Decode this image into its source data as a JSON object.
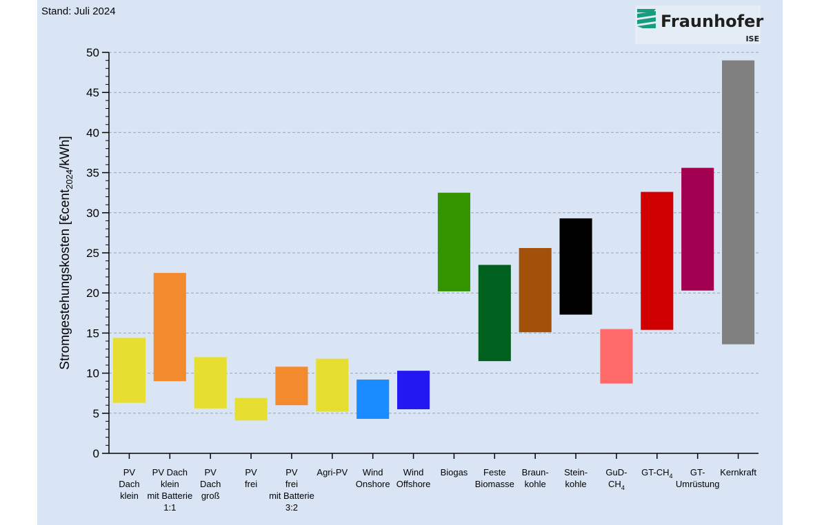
{
  "header": {
    "stand": "Stand: Juli 2024"
  },
  "logo": {
    "name": "Fraunhofer",
    "sub": "ISE",
    "color": "#179c7d"
  },
  "chart_data": {
    "type": "bar",
    "subtype": "floating-range",
    "title": "",
    "xlabel": "",
    "ylabel": "Stromgestehungskosten [€cent2024/kWh]",
    "ylabel_parts": {
      "main": "Stromgestehungskosten [€cent",
      "sub": "2024",
      "tail": "/kWh]"
    },
    "ylim": [
      0,
      50
    ],
    "yticks": [
      0,
      5,
      10,
      15,
      20,
      25,
      30,
      35,
      40,
      45,
      50
    ],
    "grid": true,
    "categories": [
      {
        "label": "PV Dach klein",
        "lines": [
          "PV",
          "Dach",
          "klein"
        ],
        "low": 6.3,
        "high": 14.4,
        "color": "#e6de30"
      },
      {
        "label": "PV Dach klein mit Batterie 1:1",
        "lines": [
          "PV Dach",
          "klein",
          "mit Batterie",
          "1:1"
        ],
        "low": 9.0,
        "high": 22.5,
        "color": "#f48a2e"
      },
      {
        "label": "PV Dach groß",
        "lines": [
          "PV",
          "Dach",
          "groß"
        ],
        "low": 5.6,
        "high": 12.0,
        "color": "#e6de30"
      },
      {
        "label": "PV frei",
        "lines": [
          "PV",
          "frei"
        ],
        "low": 4.1,
        "high": 6.9,
        "color": "#e6de30"
      },
      {
        "label": "PV frei mit Batterie 3:2",
        "lines": [
          "PV",
          "frei",
          "mit Batterie",
          "3:2"
        ],
        "low": 6.0,
        "high": 10.8,
        "color": "#f48a2e"
      },
      {
        "label": "Agri-PV",
        "lines": [
          "Agri-PV"
        ],
        "low": 5.2,
        "high": 11.8,
        "color": "#e6de30"
      },
      {
        "label": "Wind Onshore",
        "lines": [
          "Wind",
          "Onshore"
        ],
        "low": 4.3,
        "high": 9.2,
        "color": "#1a8cff"
      },
      {
        "label": "Wind Offshore",
        "lines": [
          "Wind",
          "Offshore"
        ],
        "low": 5.5,
        "high": 10.3,
        "color": "#2319f0"
      },
      {
        "label": "Biogas",
        "lines": [
          "Biogas"
        ],
        "low": 20.2,
        "high": 32.5,
        "color": "#339400"
      },
      {
        "label": "Feste Biomasse",
        "lines": [
          "Feste",
          "Biomasse"
        ],
        "low": 11.5,
        "high": 23.5,
        "color": "#00611f"
      },
      {
        "label": "Braunkohle",
        "lines": [
          "Braun-",
          "kohle"
        ],
        "low": 15.1,
        "high": 25.6,
        "color": "#a3500a"
      },
      {
        "label": "Steinkohle",
        "lines": [
          "Stein-",
          "kohle"
        ],
        "low": 17.3,
        "high": 29.3,
        "color": "#000000"
      },
      {
        "label": "GuD-CH4",
        "lines": [
          "GuD-",
          "CH4"
        ],
        "low": 8.7,
        "high": 15.5,
        "color": "#ff6b6b"
      },
      {
        "label": "GT-CH4",
        "lines": [
          "GT-CH4"
        ],
        "low": 15.4,
        "high": 32.6,
        "color": "#d00000"
      },
      {
        "label": "GT-Umrüstung",
        "lines": [
          "GT-",
          "Umrüstung"
        ],
        "low": 20.3,
        "high": 35.6,
        "color": "#a0004f"
      },
      {
        "label": "Kernkraft",
        "lines": [
          "Kernkraft"
        ],
        "low": 13.6,
        "high": 49.0,
        "color": "#808080"
      }
    ]
  }
}
